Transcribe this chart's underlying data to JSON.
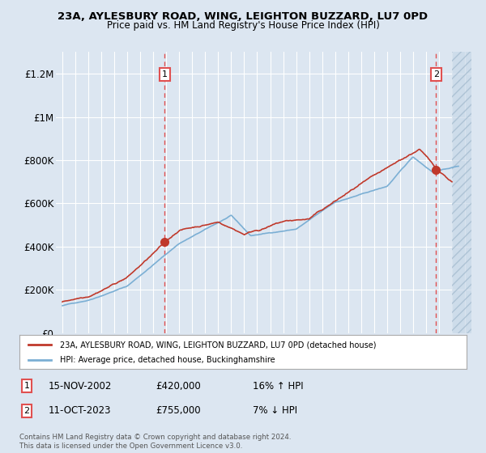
{
  "title": "23A, AYLESBURY ROAD, WING, LEIGHTON BUZZARD, LU7 0PD",
  "subtitle": "Price paid vs. HM Land Registry's House Price Index (HPI)",
  "background_color": "#dce6f1",
  "plot_bg_color": "#dce6f1",
  "red_line_color": "#c0392b",
  "blue_line_color": "#7bafd4",
  "grid_color": "#ffffff",
  "dashed_line_color": "#e05050",
  "marker1_date": 2002.88,
  "marker1_value": 420000,
  "marker1_label": "1",
  "marker1_text": "15-NOV-2002",
  "marker1_price": "£420,000",
  "marker1_hpi": "16% ↑ HPI",
  "marker2_date": 2023.78,
  "marker2_value": 755000,
  "marker2_label": "2",
  "marker2_text": "11-OCT-2023",
  "marker2_price": "£755,000",
  "marker2_hpi": "7% ↓ HPI",
  "legend_line1": "23A, AYLESBURY ROAD, WING, LEIGHTON BUZZARD, LU7 0PD (detached house)",
  "legend_line2": "HPI: Average price, detached house, Buckinghamshire",
  "footer": "Contains HM Land Registry data © Crown copyright and database right 2024.\nThis data is licensed under the Open Government Licence v3.0.",
  "ylim": [
    0,
    1300000
  ],
  "xlim": [
    1994.5,
    2026.5
  ],
  "yticks": [
    0,
    200000,
    400000,
    600000,
    800000,
    1000000,
    1200000
  ],
  "ytick_labels": [
    "£0",
    "£200K",
    "£400K",
    "£600K",
    "£800K",
    "£1M",
    "£1.2M"
  ],
  "xticks": [
    1995,
    1996,
    1997,
    1998,
    1999,
    2000,
    2001,
    2002,
    2003,
    2004,
    2005,
    2006,
    2007,
    2008,
    2009,
    2010,
    2011,
    2012,
    2013,
    2014,
    2015,
    2016,
    2017,
    2018,
    2019,
    2020,
    2021,
    2022,
    2023,
    2024,
    2025,
    2026
  ],
  "hatch_start": 2025.0
}
